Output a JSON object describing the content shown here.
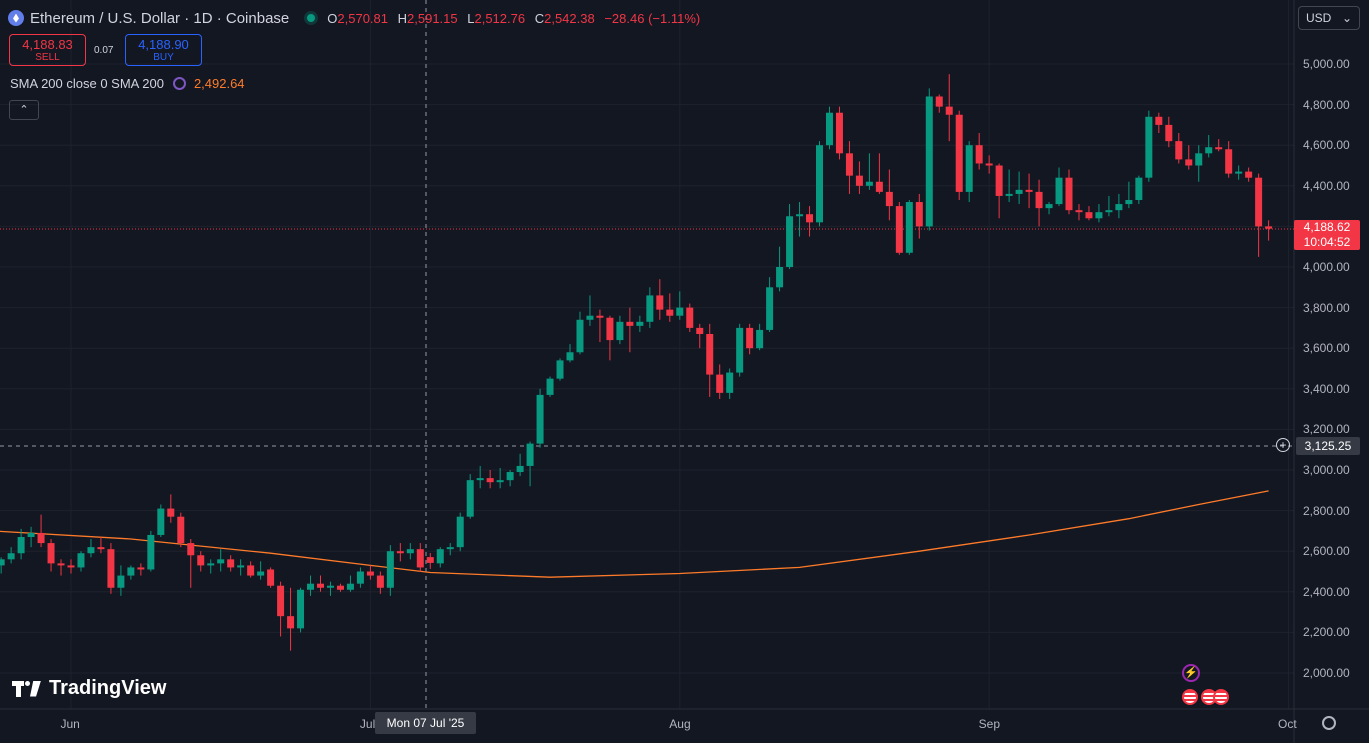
{
  "header": {
    "title": "Ethereum / U.S. Dollar · 1D · Coinbase",
    "ohlc": {
      "o_label": "O",
      "o": "2,570.81",
      "h_label": "H",
      "h": "2,591.15",
      "l_label": "L",
      "l": "2,512.76",
      "c_label": "C",
      "c": "2,542.38",
      "change": "−28.46 (−1.11%)"
    }
  },
  "trade": {
    "sell_price": "4,188.83",
    "sell_label": "SELL",
    "spread": "0.07",
    "buy_price": "4,188.90",
    "buy_label": "BUY"
  },
  "indicator": {
    "label": "SMA 200 close 0 SMA 200",
    "value": "2,492.64"
  },
  "currency": "USD",
  "price_tag": {
    "price": "4,188.62",
    "countdown": "10:04:52"
  },
  "crosshair": {
    "price": "3,125.25",
    "date": "Mon 07 Jul '25"
  },
  "logo_text": "TradingView",
  "y_axis_labels": [
    "5,000.00",
    "4,800.00",
    "4,600.00",
    "4,400.00",
    "4,200.00",
    "4,000.00",
    "3,800.00",
    "3,600.00",
    "3,400.00",
    "3,200.00",
    "3,000.00",
    "2,800.00",
    "2,600.00",
    "2,400.00",
    "2,200.00",
    "2,000.00"
  ],
  "x_axis_labels": [
    "Jun",
    "Jul",
    "Aug",
    "Sep",
    "Oct"
  ],
  "colors": {
    "up": "#089981",
    "down": "#f23645",
    "sma": "#ff7b29",
    "background": "#131722"
  },
  "chart_data": {
    "type": "candlestick",
    "title": "Ethereum / U.S. Dollar · 1D · Coinbase",
    "x_unit": "date (2025)",
    "ylim": [
      1900,
      5100
    ],
    "xlim": [
      "2025-05-24",
      "2025-10-04"
    ],
    "grid": true,
    "candles": [
      {
        "date": "2025-05-24",
        "o": 2540,
        "h": 2580,
        "l": 2510,
        "c": 2530
      },
      {
        "date": "2025-05-25",
        "o": 2530,
        "h": 2570,
        "l": 2490,
        "c": 2560
      },
      {
        "date": "2025-05-26",
        "o": 2560,
        "h": 2620,
        "l": 2540,
        "c": 2590
      },
      {
        "date": "2025-05-27",
        "o": 2590,
        "h": 2710,
        "l": 2560,
        "c": 2670
      },
      {
        "date": "2025-05-28",
        "o": 2670,
        "h": 2720,
        "l": 2620,
        "c": 2690
      },
      {
        "date": "2025-05-29",
        "o": 2690,
        "h": 2780,
        "l": 2620,
        "c": 2640
      },
      {
        "date": "2025-05-30",
        "o": 2640,
        "h": 2660,
        "l": 2500,
        "c": 2540
      },
      {
        "date": "2025-05-31",
        "o": 2540,
        "h": 2560,
        "l": 2480,
        "c": 2530
      },
      {
        "date": "2025-06-01",
        "o": 2530,
        "h": 2560,
        "l": 2490,
        "c": 2520
      },
      {
        "date": "2025-06-02",
        "o": 2520,
        "h": 2600,
        "l": 2500,
        "c": 2590
      },
      {
        "date": "2025-06-03",
        "o": 2590,
        "h": 2660,
        "l": 2570,
        "c": 2620
      },
      {
        "date": "2025-06-04",
        "o": 2620,
        "h": 2670,
        "l": 2590,
        "c": 2610
      },
      {
        "date": "2025-06-05",
        "o": 2610,
        "h": 2640,
        "l": 2390,
        "c": 2420
      },
      {
        "date": "2025-06-06",
        "o": 2420,
        "h": 2530,
        "l": 2380,
        "c": 2480
      },
      {
        "date": "2025-06-07",
        "o": 2480,
        "h": 2530,
        "l": 2460,
        "c": 2520
      },
      {
        "date": "2025-06-08",
        "o": 2520,
        "h": 2540,
        "l": 2480,
        "c": 2510
      },
      {
        "date": "2025-06-09",
        "o": 2510,
        "h": 2700,
        "l": 2500,
        "c": 2680
      },
      {
        "date": "2025-06-10",
        "o": 2680,
        "h": 2830,
        "l": 2670,
        "c": 2810
      },
      {
        "date": "2025-06-11",
        "o": 2810,
        "h": 2880,
        "l": 2740,
        "c": 2770
      },
      {
        "date": "2025-06-12",
        "o": 2770,
        "h": 2790,
        "l": 2620,
        "c": 2640
      },
      {
        "date": "2025-06-13",
        "o": 2640,
        "h": 2660,
        "l": 2420,
        "c": 2580
      },
      {
        "date": "2025-06-14",
        "o": 2580,
        "h": 2600,
        "l": 2500,
        "c": 2530
      },
      {
        "date": "2025-06-15",
        "o": 2530,
        "h": 2560,
        "l": 2490,
        "c": 2540
      },
      {
        "date": "2025-06-16",
        "o": 2540,
        "h": 2610,
        "l": 2500,
        "c": 2560
      },
      {
        "date": "2025-06-17",
        "o": 2560,
        "h": 2580,
        "l": 2500,
        "c": 2520
      },
      {
        "date": "2025-06-18",
        "o": 2520,
        "h": 2560,
        "l": 2480,
        "c": 2530
      },
      {
        "date": "2025-06-19",
        "o": 2530,
        "h": 2550,
        "l": 2470,
        "c": 2480
      },
      {
        "date": "2025-06-20",
        "o": 2480,
        "h": 2550,
        "l": 2460,
        "c": 2500
      },
      {
        "date": "2025-06-21",
        "o": 2510,
        "h": 2520,
        "l": 2420,
        "c": 2430
      },
      {
        "date": "2025-06-22",
        "o": 2430,
        "h": 2450,
        "l": 2180,
        "c": 2280
      },
      {
        "date": "2025-06-23",
        "o": 2280,
        "h": 2420,
        "l": 2110,
        "c": 2220
      },
      {
        "date": "2025-06-24",
        "o": 2220,
        "h": 2420,
        "l": 2200,
        "c": 2410
      },
      {
        "date": "2025-06-25",
        "o": 2410,
        "h": 2480,
        "l": 2380,
        "c": 2440
      },
      {
        "date": "2025-06-26",
        "o": 2440,
        "h": 2480,
        "l": 2400,
        "c": 2420
      },
      {
        "date": "2025-06-27",
        "o": 2420,
        "h": 2450,
        "l": 2380,
        "c": 2430
      },
      {
        "date": "2025-06-28",
        "o": 2430,
        "h": 2440,
        "l": 2400,
        "c": 2410
      },
      {
        "date": "2025-06-29",
        "o": 2410,
        "h": 2480,
        "l": 2400,
        "c": 2440
      },
      {
        "date": "2025-06-30",
        "o": 2440,
        "h": 2520,
        "l": 2420,
        "c": 2500
      },
      {
        "date": "2025-07-01",
        "o": 2500,
        "h": 2530,
        "l": 2460,
        "c": 2480
      },
      {
        "date": "2025-07-02",
        "o": 2480,
        "h": 2500,
        "l": 2390,
        "c": 2420
      },
      {
        "date": "2025-07-03",
        "o": 2420,
        "h": 2630,
        "l": 2380,
        "c": 2600
      },
      {
        "date": "2025-07-04",
        "o": 2600,
        "h": 2640,
        "l": 2550,
        "c": 2590
      },
      {
        "date": "2025-07-05",
        "o": 2590,
        "h": 2640,
        "l": 2560,
        "c": 2610
      },
      {
        "date": "2025-07-06",
        "o": 2610,
        "h": 2640,
        "l": 2500,
        "c": 2520
      },
      {
        "date": "2025-07-07",
        "o": 2570.81,
        "h": 2591.15,
        "l": 2512.76,
        "c": 2542.38
      },
      {
        "date": "2025-07-08",
        "o": 2540,
        "h": 2620,
        "l": 2520,
        "c": 2610
      },
      {
        "date": "2025-07-09",
        "o": 2610,
        "h": 2640,
        "l": 2580,
        "c": 2620
      },
      {
        "date": "2025-07-10",
        "o": 2620,
        "h": 2790,
        "l": 2600,
        "c": 2770
      },
      {
        "date": "2025-07-11",
        "o": 2770,
        "h": 2980,
        "l": 2760,
        "c": 2950
      },
      {
        "date": "2025-07-12",
        "o": 2950,
        "h": 3020,
        "l": 2910,
        "c": 2960
      },
      {
        "date": "2025-07-13",
        "o": 2960,
        "h": 3000,
        "l": 2910,
        "c": 2940
      },
      {
        "date": "2025-07-14",
        "o": 2940,
        "h": 3010,
        "l": 2910,
        "c": 2950
      },
      {
        "date": "2025-07-15",
        "o": 2950,
        "h": 3000,
        "l": 2920,
        "c": 2990
      },
      {
        "date": "2025-07-16",
        "o": 2990,
        "h": 3080,
        "l": 2970,
        "c": 3020
      },
      {
        "date": "2025-07-17",
        "o": 3020,
        "h": 3140,
        "l": 2920,
        "c": 3130
      },
      {
        "date": "2025-07-18",
        "o": 3130,
        "h": 3400,
        "l": 3110,
        "c": 3370
      },
      {
        "date": "2025-07-19",
        "o": 3370,
        "h": 3460,
        "l": 3360,
        "c": 3450
      },
      {
        "date": "2025-07-20",
        "o": 3450,
        "h": 3550,
        "l": 3440,
        "c": 3540
      },
      {
        "date": "2025-07-21",
        "o": 3540,
        "h": 3620,
        "l": 3530,
        "c": 3580
      },
      {
        "date": "2025-07-22",
        "o": 3580,
        "h": 3780,
        "l": 3570,
        "c": 3740
      },
      {
        "date": "2025-07-23",
        "o": 3740,
        "h": 3860,
        "l": 3710,
        "c": 3760
      },
      {
        "date": "2025-07-24",
        "o": 3760,
        "h": 3790,
        "l": 3630,
        "c": 3750
      },
      {
        "date": "2025-07-25",
        "o": 3750,
        "h": 3760,
        "l": 3540,
        "c": 3640
      },
      {
        "date": "2025-07-26",
        "o": 3640,
        "h": 3760,
        "l": 3620,
        "c": 3730
      },
      {
        "date": "2025-07-27",
        "o": 3730,
        "h": 3800,
        "l": 3580,
        "c": 3710
      },
      {
        "date": "2025-07-28",
        "o": 3710,
        "h": 3760,
        "l": 3680,
        "c": 3730
      },
      {
        "date": "2025-07-29",
        "o": 3730,
        "h": 3900,
        "l": 3700,
        "c": 3860
      },
      {
        "date": "2025-07-30",
        "o": 3860,
        "h": 3940,
        "l": 3740,
        "c": 3790
      },
      {
        "date": "2025-07-31",
        "o": 3790,
        "h": 3870,
        "l": 3730,
        "c": 3760
      },
      {
        "date": "2025-08-01",
        "o": 3760,
        "h": 3880,
        "l": 3740,
        "c": 3800
      },
      {
        "date": "2025-08-02",
        "o": 3800,
        "h": 3820,
        "l": 3680,
        "c": 3700
      },
      {
        "date": "2025-08-03",
        "o": 3700,
        "h": 3720,
        "l": 3600,
        "c": 3670
      },
      {
        "date": "2025-08-04",
        "o": 3670,
        "h": 3720,
        "l": 3360,
        "c": 3470
      },
      {
        "date": "2025-08-05",
        "o": 3470,
        "h": 3520,
        "l": 3350,
        "c": 3380
      },
      {
        "date": "2025-08-06",
        "o": 3380,
        "h": 3500,
        "l": 3350,
        "c": 3480
      },
      {
        "date": "2025-08-07",
        "o": 3480,
        "h": 3720,
        "l": 3460,
        "c": 3700
      },
      {
        "date": "2025-08-08",
        "o": 3700,
        "h": 3720,
        "l": 3570,
        "c": 3600
      },
      {
        "date": "2025-08-09",
        "o": 3600,
        "h": 3720,
        "l": 3590,
        "c": 3690
      },
      {
        "date": "2025-08-10",
        "o": 3690,
        "h": 3950,
        "l": 3680,
        "c": 3900
      },
      {
        "date": "2025-08-11",
        "o": 3900,
        "h": 4100,
        "l": 3880,
        "c": 4000
      },
      {
        "date": "2025-08-12",
        "o": 4000,
        "h": 4310,
        "l": 3990,
        "c": 4250
      },
      {
        "date": "2025-08-13",
        "o": 4250,
        "h": 4320,
        "l": 4150,
        "c": 4260
      },
      {
        "date": "2025-08-14",
        "o": 4260,
        "h": 4300,
        "l": 4150,
        "c": 4220
      },
      {
        "date": "2025-08-15",
        "o": 4220,
        "h": 4620,
        "l": 4200,
        "c": 4600
      },
      {
        "date": "2025-08-16",
        "o": 4600,
        "h": 4790,
        "l": 4580,
        "c": 4760
      },
      {
        "date": "2025-08-17",
        "o": 4760,
        "h": 4790,
        "l": 4530,
        "c": 4560
      },
      {
        "date": "2025-08-18",
        "o": 4560,
        "h": 4620,
        "l": 4360,
        "c": 4450
      },
      {
        "date": "2025-08-19",
        "o": 4450,
        "h": 4520,
        "l": 4360,
        "c": 4400
      },
      {
        "date": "2025-08-20",
        "o": 4400,
        "h": 4560,
        "l": 4380,
        "c": 4420
      },
      {
        "date": "2025-08-21",
        "o": 4420,
        "h": 4560,
        "l": 4360,
        "c": 4370
      },
      {
        "date": "2025-08-22",
        "o": 4370,
        "h": 4480,
        "l": 4230,
        "c": 4300
      },
      {
        "date": "2025-08-23",
        "o": 4300,
        "h": 4320,
        "l": 4060,
        "c": 4070
      },
      {
        "date": "2025-08-24",
        "o": 4070,
        "h": 4330,
        "l": 4060,
        "c": 4320
      },
      {
        "date": "2025-08-25",
        "o": 4320,
        "h": 4360,
        "l": 4140,
        "c": 4200
      },
      {
        "date": "2025-08-26",
        "o": 4200,
        "h": 4880,
        "l": 4180,
        "c": 4840
      },
      {
        "date": "2025-08-27",
        "o": 4840,
        "h": 4850,
        "l": 4760,
        "c": 4790
      },
      {
        "date": "2025-08-28",
        "o": 4790,
        "h": 4950,
        "l": 4620,
        "c": 4750
      },
      {
        "date": "2025-08-29",
        "o": 4750,
        "h": 4770,
        "l": 4330,
        "c": 4370
      },
      {
        "date": "2025-08-30",
        "o": 4370,
        "h": 4620,
        "l": 4320,
        "c": 4600
      },
      {
        "date": "2025-08-31",
        "o": 4600,
        "h": 4660,
        "l": 4480,
        "c": 4510
      },
      {
        "date": "2025-09-01",
        "o": 4510,
        "h": 4550,
        "l": 4460,
        "c": 4500
      },
      {
        "date": "2025-09-02",
        "o": 4500,
        "h": 4510,
        "l": 4240,
        "c": 4350
      },
      {
        "date": "2025-09-03",
        "o": 4350,
        "h": 4480,
        "l": 4320,
        "c": 4360
      },
      {
        "date": "2025-09-04",
        "o": 4360,
        "h": 4470,
        "l": 4310,
        "c": 4380
      },
      {
        "date": "2025-09-05",
        "o": 4380,
        "h": 4460,
        "l": 4290,
        "c": 4370
      },
      {
        "date": "2025-09-06",
        "o": 4370,
        "h": 4430,
        "l": 4200,
        "c": 4290
      },
      {
        "date": "2025-09-07",
        "o": 4290,
        "h": 4320,
        "l": 4260,
        "c": 4310
      },
      {
        "date": "2025-09-08",
        "o": 4310,
        "h": 4490,
        "l": 4300,
        "c": 4440
      },
      {
        "date": "2025-09-09",
        "o": 4440,
        "h": 4480,
        "l": 4260,
        "c": 4280
      },
      {
        "date": "2025-09-10",
        "o": 4280,
        "h": 4310,
        "l": 4230,
        "c": 4270
      },
      {
        "date": "2025-09-11",
        "o": 4270,
        "h": 4300,
        "l": 4230,
        "c": 4240
      },
      {
        "date": "2025-09-12",
        "o": 4240,
        "h": 4310,
        "l": 4220,
        "c": 4270
      },
      {
        "date": "2025-09-13",
        "o": 4270,
        "h": 4350,
        "l": 4250,
        "c": 4280
      },
      {
        "date": "2025-09-14",
        "o": 4280,
        "h": 4360,
        "l": 4240,
        "c": 4310
      },
      {
        "date": "2025-09-15",
        "o": 4310,
        "h": 4420,
        "l": 4290,
        "c": 4330
      },
      {
        "date": "2025-09-16",
        "o": 4330,
        "h": 4450,
        "l": 4310,
        "c": 4440
      },
      {
        "date": "2025-09-17",
        "o": 4440,
        "h": 4770,
        "l": 4420,
        "c": 4740
      },
      {
        "date": "2025-09-18",
        "o": 4740,
        "h": 4760,
        "l": 4660,
        "c": 4700
      },
      {
        "date": "2025-09-19",
        "o": 4700,
        "h": 4740,
        "l": 4590,
        "c": 4620
      },
      {
        "date": "2025-09-20",
        "o": 4620,
        "h": 4660,
        "l": 4510,
        "c": 4530
      },
      {
        "date": "2025-09-21",
        "o": 4530,
        "h": 4600,
        "l": 4480,
        "c": 4500
      },
      {
        "date": "2025-09-22",
        "o": 4500,
        "h": 4600,
        "l": 4420,
        "c": 4560
      },
      {
        "date": "2025-09-23",
        "o": 4560,
        "h": 4650,
        "l": 4540,
        "c": 4590
      },
      {
        "date": "2025-09-24",
        "o": 4590,
        "h": 4630,
        "l": 4570,
        "c": 4580
      },
      {
        "date": "2025-09-25",
        "o": 4580,
        "h": 4620,
        "l": 4440,
        "c": 4460
      },
      {
        "date": "2025-09-26",
        "o": 4460,
        "h": 4500,
        "l": 4430,
        "c": 4470
      },
      {
        "date": "2025-09-27",
        "o": 4470,
        "h": 4490,
        "l": 4420,
        "c": 4440
      },
      {
        "date": "2025-09-28",
        "o": 4440,
        "h": 4460,
        "l": 4050,
        "c": 4200
      },
      {
        "date": "2025-09-29",
        "o": 4200,
        "h": 4230,
        "l": 4130,
        "c": 4188.62
      }
    ],
    "sma": {
      "name": "SMA 200",
      "points": [
        {
          "date": "2025-05-24",
          "v": 2700
        },
        {
          "date": "2025-06-07",
          "v": 2660
        },
        {
          "date": "2025-06-21",
          "v": 2590
        },
        {
          "date": "2025-07-01",
          "v": 2530
        },
        {
          "date": "2025-07-07",
          "v": 2495
        },
        {
          "date": "2025-07-19",
          "v": 2472
        },
        {
          "date": "2025-08-01",
          "v": 2490
        },
        {
          "date": "2025-08-13",
          "v": 2520
        },
        {
          "date": "2025-08-25",
          "v": 2600
        },
        {
          "date": "2025-09-05",
          "v": 2680
        },
        {
          "date": "2025-09-15",
          "v": 2760
        },
        {
          "date": "2025-09-22",
          "v": 2830
        },
        {
          "date": "2025-09-29",
          "v": 2897
        }
      ]
    }
  }
}
